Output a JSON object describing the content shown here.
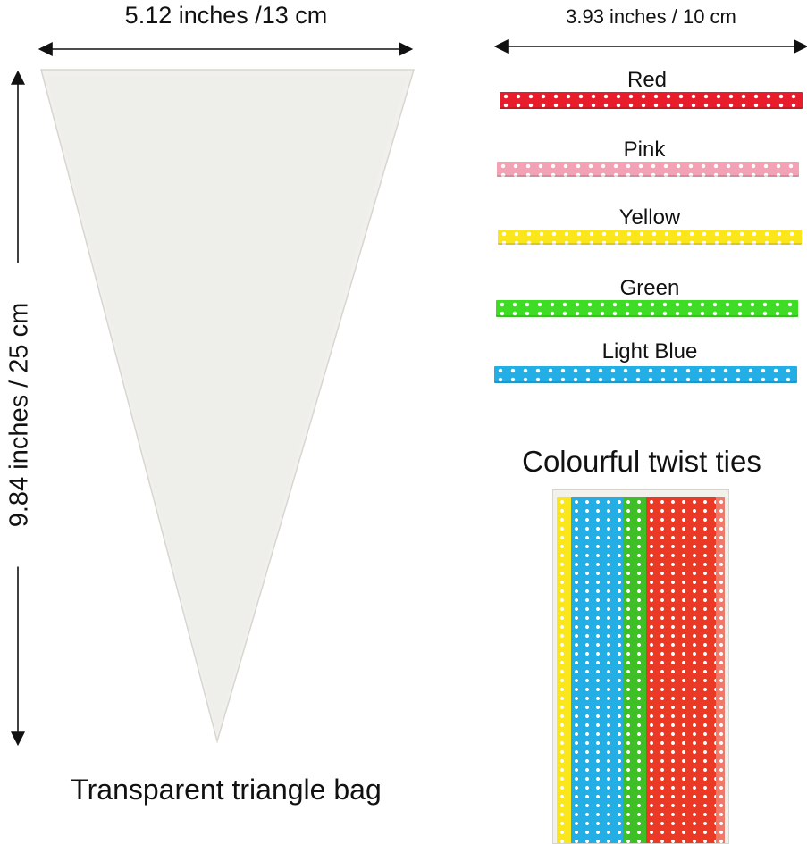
{
  "bag": {
    "width_label": "5.12 inches /13 cm",
    "height_label": "9.84 inches / 25 cm",
    "caption": "Transparent triangle bag"
  },
  "ties": {
    "length_label": "3.93 inches / 10 cm",
    "items": [
      {
        "label": "Red",
        "color": "#e81c2a"
      },
      {
        "label": "Pink",
        "color": "#f3a1b4"
      },
      {
        "label": "Yellow",
        "color": "#fbe61a"
      },
      {
        "label": "Green",
        "color": "#3fdc26"
      },
      {
        "label": "Light Blue",
        "color": "#23aee6"
      }
    ],
    "caption": "Colourful twist ties"
  }
}
